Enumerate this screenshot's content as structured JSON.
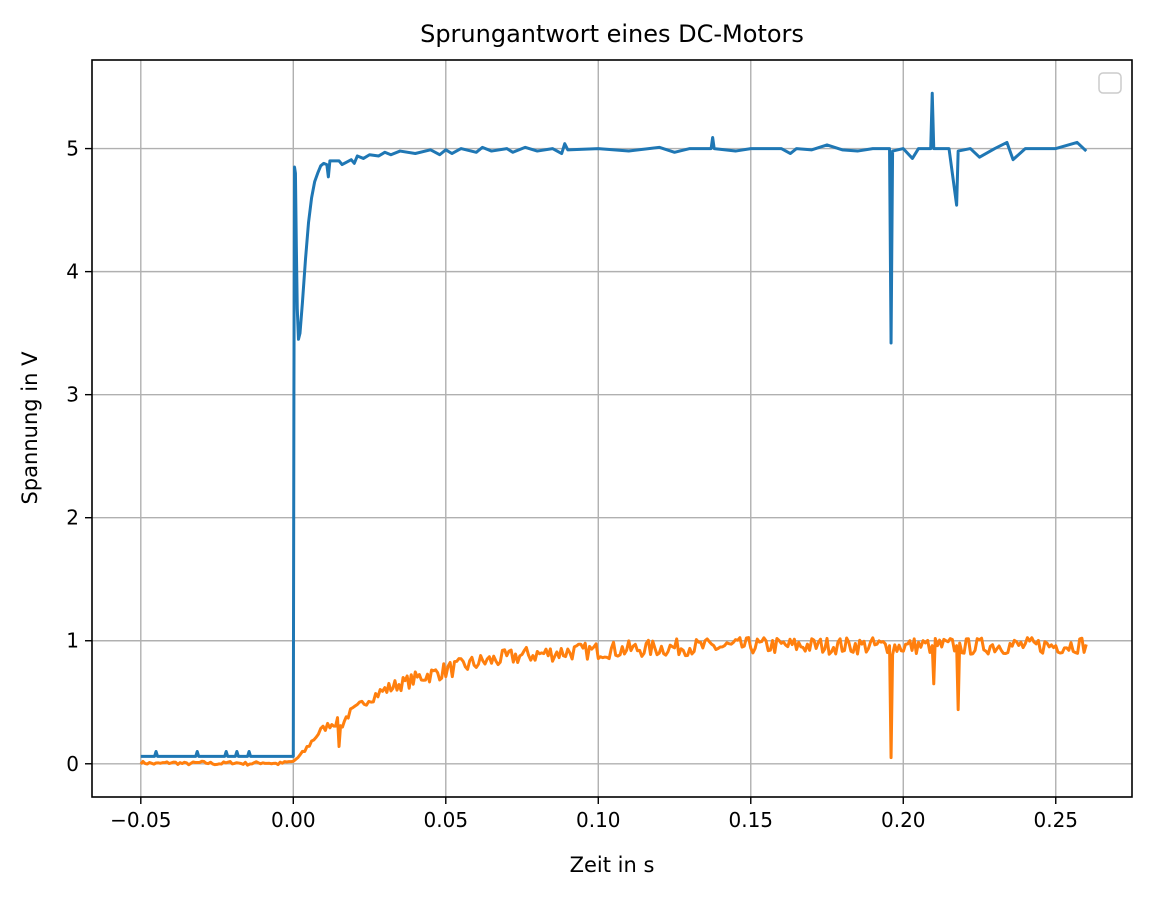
{
  "chart_data": {
    "type": "line",
    "title": "Sprungantwort eines DC-Motors",
    "xlabel": "Zeit in s",
    "ylabel": "Spannung in V",
    "xlim": [
      -0.066,
      0.275
    ],
    "ylim": [
      -0.27,
      5.72
    ],
    "xticks": [
      -0.05,
      0.0,
      0.05,
      0.1,
      0.15,
      0.2,
      0.25
    ],
    "xtick_labels": [
      "−0.05",
      "0.00",
      "0.05",
      "0.10",
      "0.15",
      "0.20",
      "0.25"
    ],
    "yticks": [
      0,
      1,
      2,
      3,
      4,
      5
    ],
    "ytick_labels": [
      "0",
      "1",
      "2",
      "3",
      "4",
      "5"
    ],
    "grid": true,
    "legend": {
      "placement": "top-right",
      "entries": []
    },
    "colors": {
      "series1": "#1f77b4",
      "series2": "#ff7f0e",
      "grid": "#b0b0b0"
    },
    "series": [
      {
        "color": "#1f77b4",
        "points": [
          [
            -0.05,
            0.06
          ],
          [
            -0.0455,
            0.06
          ],
          [
            -0.045,
            0.1
          ],
          [
            -0.0445,
            0.06
          ],
          [
            -0.032,
            0.06
          ],
          [
            -0.0315,
            0.1
          ],
          [
            -0.031,
            0.06
          ],
          [
            -0.0225,
            0.06
          ],
          [
            -0.022,
            0.1
          ],
          [
            -0.0215,
            0.06
          ],
          [
            -0.019,
            0.06
          ],
          [
            -0.0185,
            0.1
          ],
          [
            -0.018,
            0.06
          ],
          [
            -0.015,
            0.06
          ],
          [
            -0.0145,
            0.1
          ],
          [
            -0.014,
            0.06
          ],
          [
            0.0,
            0.06
          ],
          [
            0.0002,
            3.0
          ],
          [
            0.0004,
            4.85
          ],
          [
            0.0007,
            4.8
          ],
          [
            0.001,
            4.2
          ],
          [
            0.0013,
            3.7
          ],
          [
            0.0017,
            3.45
          ],
          [
            0.0022,
            3.5
          ],
          [
            0.003,
            3.75
          ],
          [
            0.004,
            4.1
          ],
          [
            0.005,
            4.4
          ],
          [
            0.006,
            4.6
          ],
          [
            0.007,
            4.73
          ],
          [
            0.008,
            4.8
          ],
          [
            0.009,
            4.86
          ],
          [
            0.01,
            4.88
          ],
          [
            0.011,
            4.87
          ],
          [
            0.0115,
            4.77
          ],
          [
            0.012,
            4.9
          ],
          [
            0.015,
            4.9
          ],
          [
            0.016,
            4.87
          ],
          [
            0.019,
            4.91
          ],
          [
            0.02,
            4.88
          ],
          [
            0.021,
            4.94
          ],
          [
            0.023,
            4.92
          ],
          [
            0.025,
            4.95
          ],
          [
            0.028,
            4.94
          ],
          [
            0.03,
            4.97
          ],
          [
            0.032,
            4.95
          ],
          [
            0.035,
            4.98
          ],
          [
            0.04,
            4.96
          ],
          [
            0.045,
            4.99
          ],
          [
            0.048,
            4.95
          ],
          [
            0.05,
            4.99
          ],
          [
            0.052,
            4.96
          ],
          [
            0.055,
            5.0
          ],
          [
            0.06,
            4.97
          ],
          [
            0.062,
            5.01
          ],
          [
            0.065,
            4.98
          ],
          [
            0.07,
            5.0
          ],
          [
            0.072,
            4.97
          ],
          [
            0.076,
            5.01
          ],
          [
            0.08,
            4.98
          ],
          [
            0.085,
            5.0
          ],
          [
            0.088,
            4.96
          ],
          [
            0.089,
            5.04
          ],
          [
            0.09,
            4.99
          ],
          [
            0.1,
            5.0
          ],
          [
            0.11,
            4.98
          ],
          [
            0.12,
            5.01
          ],
          [
            0.125,
            4.97
          ],
          [
            0.13,
            5.0
          ],
          [
            0.137,
            5.0
          ],
          [
            0.1375,
            5.09
          ],
          [
            0.138,
            5.0
          ],
          [
            0.145,
            4.98
          ],
          [
            0.15,
            5.0
          ],
          [
            0.16,
            5.0
          ],
          [
            0.163,
            4.96
          ],
          [
            0.165,
            5.0
          ],
          [
            0.17,
            4.99
          ],
          [
            0.175,
            5.03
          ],
          [
            0.18,
            4.99
          ],
          [
            0.185,
            4.98
          ],
          [
            0.19,
            5.0
          ],
          [
            0.1955,
            5.0
          ],
          [
            0.196,
            3.42
          ],
          [
            0.1965,
            4.98
          ],
          [
            0.2,
            5.0
          ],
          [
            0.203,
            4.92
          ],
          [
            0.205,
            5.0
          ],
          [
            0.209,
            5.0
          ],
          [
            0.2095,
            5.45
          ],
          [
            0.21,
            5.0
          ],
          [
            0.215,
            5.0
          ],
          [
            0.2175,
            4.54
          ],
          [
            0.218,
            4.98
          ],
          [
            0.222,
            5.0
          ],
          [
            0.225,
            4.93
          ],
          [
            0.23,
            5.0
          ],
          [
            0.234,
            5.05
          ],
          [
            0.236,
            4.91
          ],
          [
            0.24,
            5.0
          ],
          [
            0.25,
            5.0
          ],
          [
            0.257,
            5.05
          ],
          [
            0.26,
            4.98
          ]
        ]
      },
      {
        "color": "#ff7f0e",
        "points": [
          [
            -0.05,
            0.01
          ],
          [
            -0.045,
            0.0
          ],
          [
            -0.04,
            0.01
          ],
          [
            -0.035,
            0.0
          ],
          [
            -0.03,
            0.01
          ],
          [
            -0.025,
            0.0
          ],
          [
            -0.02,
            0.01
          ],
          [
            -0.015,
            0.0
          ],
          [
            -0.01,
            0.01
          ],
          [
            -0.005,
            0.0
          ],
          [
            0.0,
            0.02
          ],
          [
            0.003,
            0.08
          ],
          [
            0.006,
            0.18
          ],
          [
            0.009,
            0.27
          ],
          [
            0.012,
            0.32
          ],
          [
            0.0145,
            0.34
          ],
          [
            0.015,
            0.16
          ],
          [
            0.0155,
            0.3
          ],
          [
            0.018,
            0.4
          ],
          [
            0.021,
            0.45
          ],
          [
            0.024,
            0.52
          ],
          [
            0.027,
            0.56
          ],
          [
            0.03,
            0.6
          ],
          [
            0.034,
            0.64
          ],
          [
            0.038,
            0.67
          ],
          [
            0.042,
            0.71
          ],
          [
            0.046,
            0.73
          ],
          [
            0.05,
            0.76
          ],
          [
            0.055,
            0.79
          ],
          [
            0.06,
            0.82
          ],
          [
            0.065,
            0.84
          ],
          [
            0.07,
            0.86
          ],
          [
            0.075,
            0.88
          ],
          [
            0.08,
            0.89
          ],
          [
            0.09,
            0.91
          ],
          [
            0.1,
            0.92
          ],
          [
            0.11,
            0.93
          ],
          [
            0.12,
            0.94
          ],
          [
            0.13,
            0.95
          ],
          [
            0.14,
            0.95
          ],
          [
            0.15,
            0.96
          ],
          [
            0.16,
            0.96
          ],
          [
            0.17,
            0.96
          ],
          [
            0.18,
            0.96
          ],
          [
            0.19,
            0.96
          ],
          [
            0.1955,
            0.96
          ],
          [
            0.196,
            0.05
          ],
          [
            0.1965,
            0.95
          ],
          [
            0.205,
            0.96
          ],
          [
            0.2095,
            0.96
          ],
          [
            0.21,
            0.65
          ],
          [
            0.2105,
            0.96
          ],
          [
            0.2175,
            0.96
          ],
          [
            0.218,
            0.44
          ],
          [
            0.2185,
            0.95
          ],
          [
            0.23,
            0.96
          ],
          [
            0.24,
            0.96
          ],
          [
            0.25,
            0.96
          ],
          [
            0.26,
            0.97
          ]
        ],
        "noise_amplitude": 0.07
      }
    ]
  }
}
